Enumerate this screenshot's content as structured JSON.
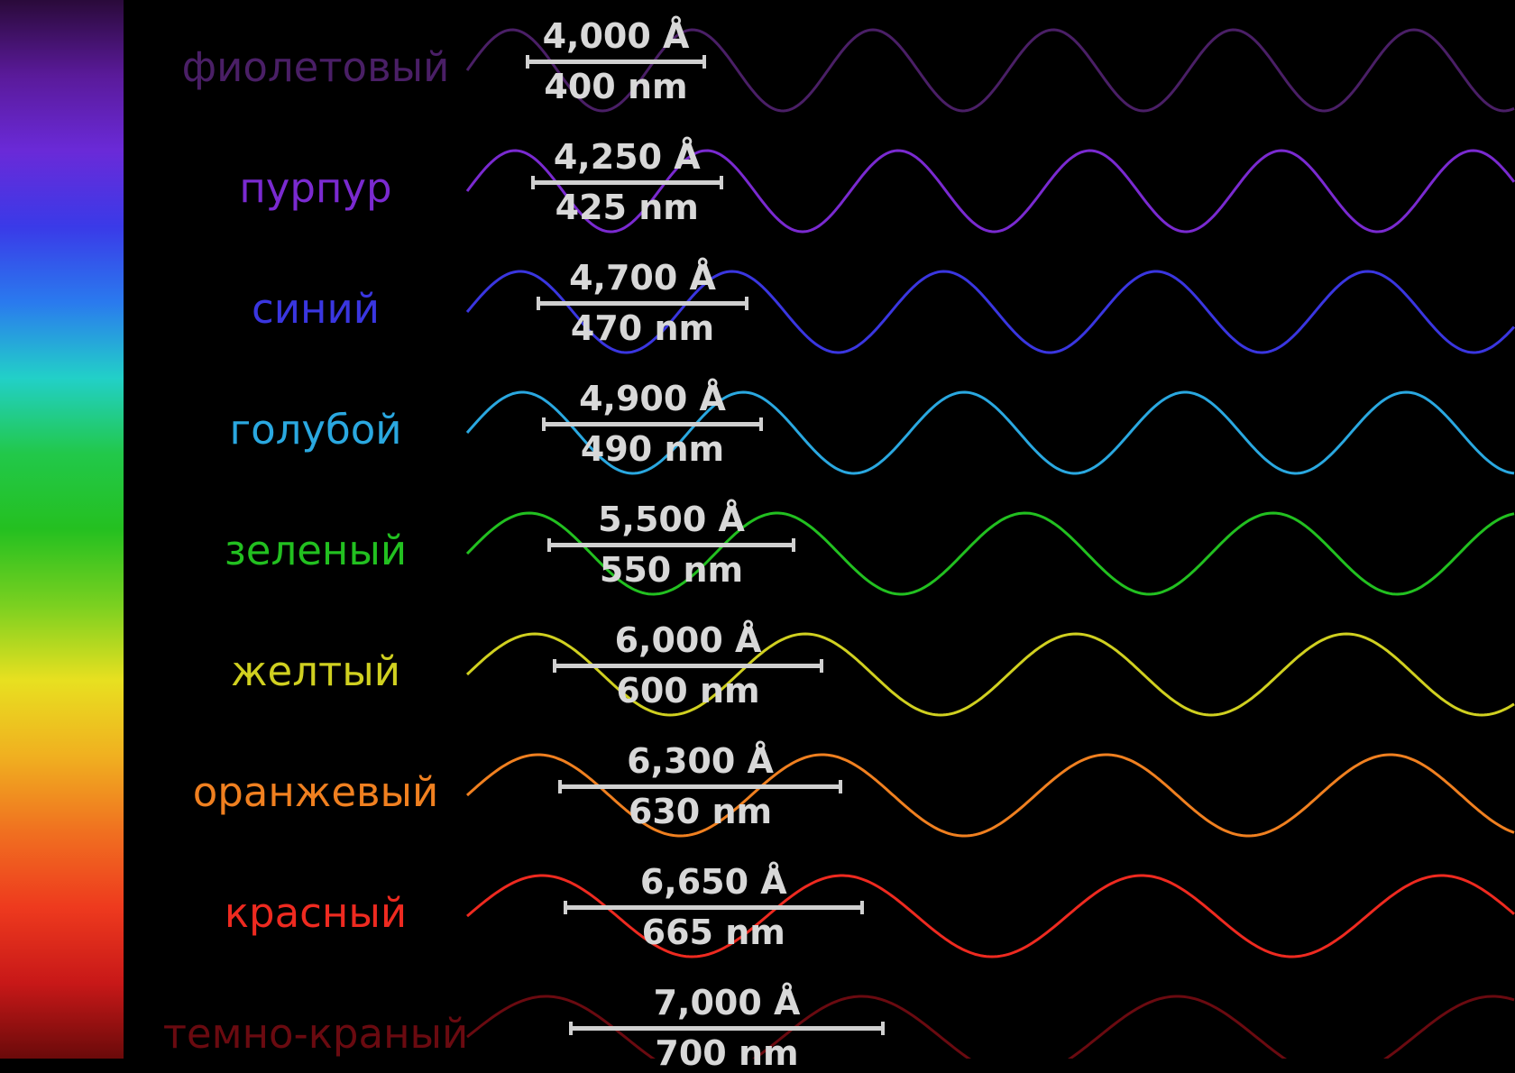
{
  "spectrum_gradient": [
    "#2a0a3a",
    "#5a1a9a",
    "#6a2ad8",
    "#3a3ae8",
    "#2a7aee",
    "#22d0c8",
    "#22c84a",
    "#24c020",
    "#7ad020",
    "#e8e020",
    "#f0b020",
    "#f07020",
    "#ee3a1e",
    "#c81818",
    "#6a0a0a"
  ],
  "rows": [
    {
      "name": "фиолетовый",
      "angstrom": "4,000 Å",
      "nm": "400 nm",
      "color": "#4a1f66",
      "wavelength": 400
    },
    {
      "name": "пурпур",
      "angstrom": "4,250 Å",
      "nm": "425 nm",
      "color": "#7a2ad0",
      "wavelength": 425
    },
    {
      "name": "синий",
      "angstrom": "4,700 Å",
      "nm": "470 nm",
      "color": "#3a36e0",
      "wavelength": 470
    },
    {
      "name": "голубой",
      "angstrom": "4,900 Å",
      "nm": "490 nm",
      "color": "#2aa8e0",
      "wavelength": 490
    },
    {
      "name": "зеленый",
      "angstrom": "5,500 Å",
      "nm": "550 nm",
      "color": "#22c020",
      "wavelength": 550
    },
    {
      "name": "желтый",
      "angstrom": "6,000 Å",
      "nm": "600 nm",
      "color": "#d0d020",
      "wavelength": 600
    },
    {
      "name": "оранжевый",
      "angstrom": "6,300 Å",
      "nm": "630 nm",
      "color": "#f08020",
      "wavelength": 630
    },
    {
      "name": "красный",
      "angstrom": "6,650 Å",
      "nm": "665 nm",
      "color": "#ee2a20",
      "wavelength": 665
    },
    {
      "name": "темно-краный",
      "angstrom": "7,000 Å",
      "nm": "700 nm",
      "color": "#6a0a10",
      "wavelength": 700
    }
  ]
}
